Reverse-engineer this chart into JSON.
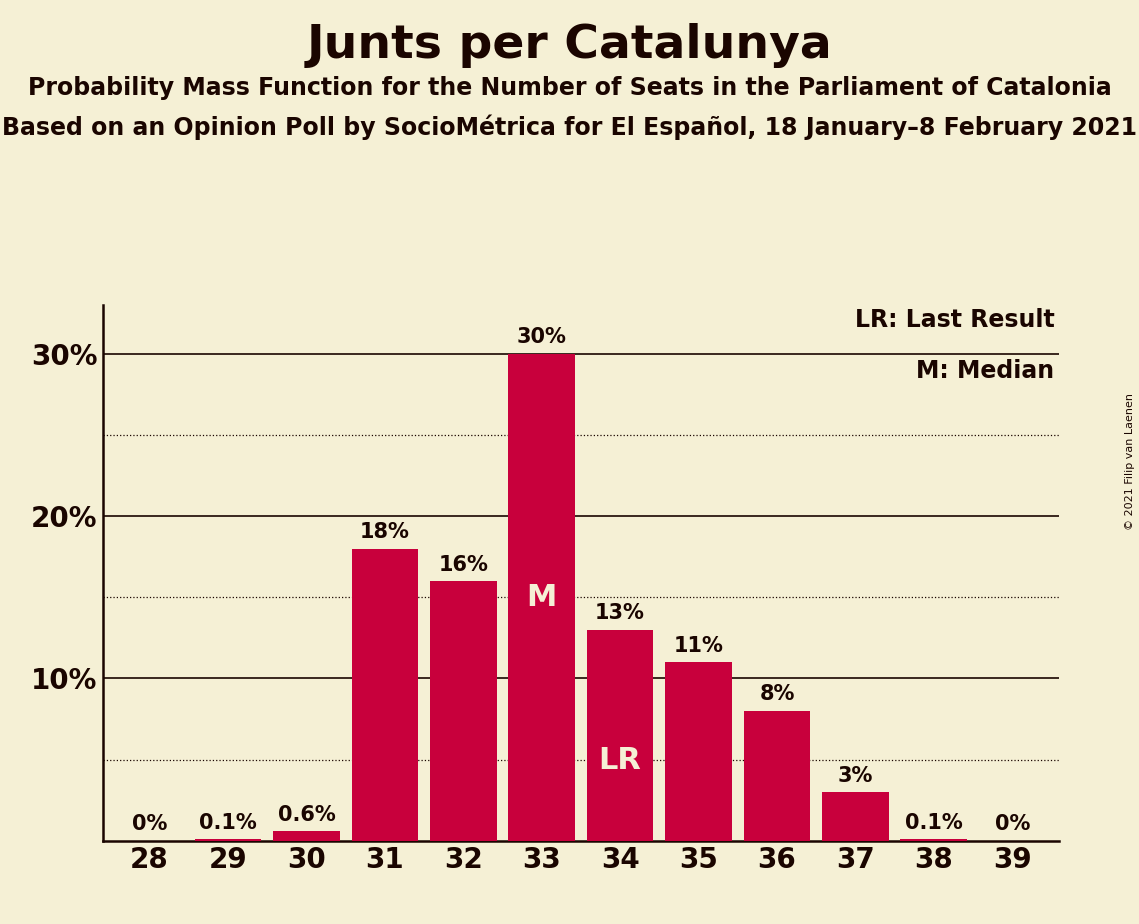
{
  "title": "Junts per Catalunya",
  "subtitle1": "Probability Mass Function for the Number of Seats in the Parliament of Catalonia",
  "subtitle2": "Based on an Opinion Poll by SocioMétrica for El Español, 18 January–8 February 2021",
  "copyright": "© 2021 Filip van Laenen",
  "categories": [
    28,
    29,
    30,
    31,
    32,
    33,
    34,
    35,
    36,
    37,
    38,
    39
  ],
  "values": [
    0.0,
    0.1,
    0.6,
    18.0,
    16.0,
    30.0,
    13.0,
    11.0,
    8.0,
    3.0,
    0.1,
    0.0
  ],
  "labels": [
    "0%",
    "0.1%",
    "0.6%",
    "18%",
    "16%",
    "30%",
    "13%",
    "11%",
    "8%",
    "3%",
    "0.1%",
    "0%"
  ],
  "bar_color": "#c8003c",
  "background_color": "#f5f0d5",
  "text_color": "#1a0500",
  "lr_bar_index": 6,
  "median_bar_index": 5,
  "lr_label": "LR",
  "median_label": "M",
  "legend_lr": "LR: Last Result",
  "legend_m": "M: Median",
  "ylim": [
    0,
    33
  ],
  "ytick_major": [
    10,
    20,
    30
  ],
  "ytick_major_labels": [
    "10%",
    "20%",
    "30%"
  ],
  "ytick_minor_dotted": [
    5,
    15,
    25
  ],
  "title_fontsize": 34,
  "subtitle_fontsize": 17,
  "label_fontsize": 15,
  "tick_fontsize": 20,
  "legend_fontsize": 17,
  "inbar_fontsize": 22
}
